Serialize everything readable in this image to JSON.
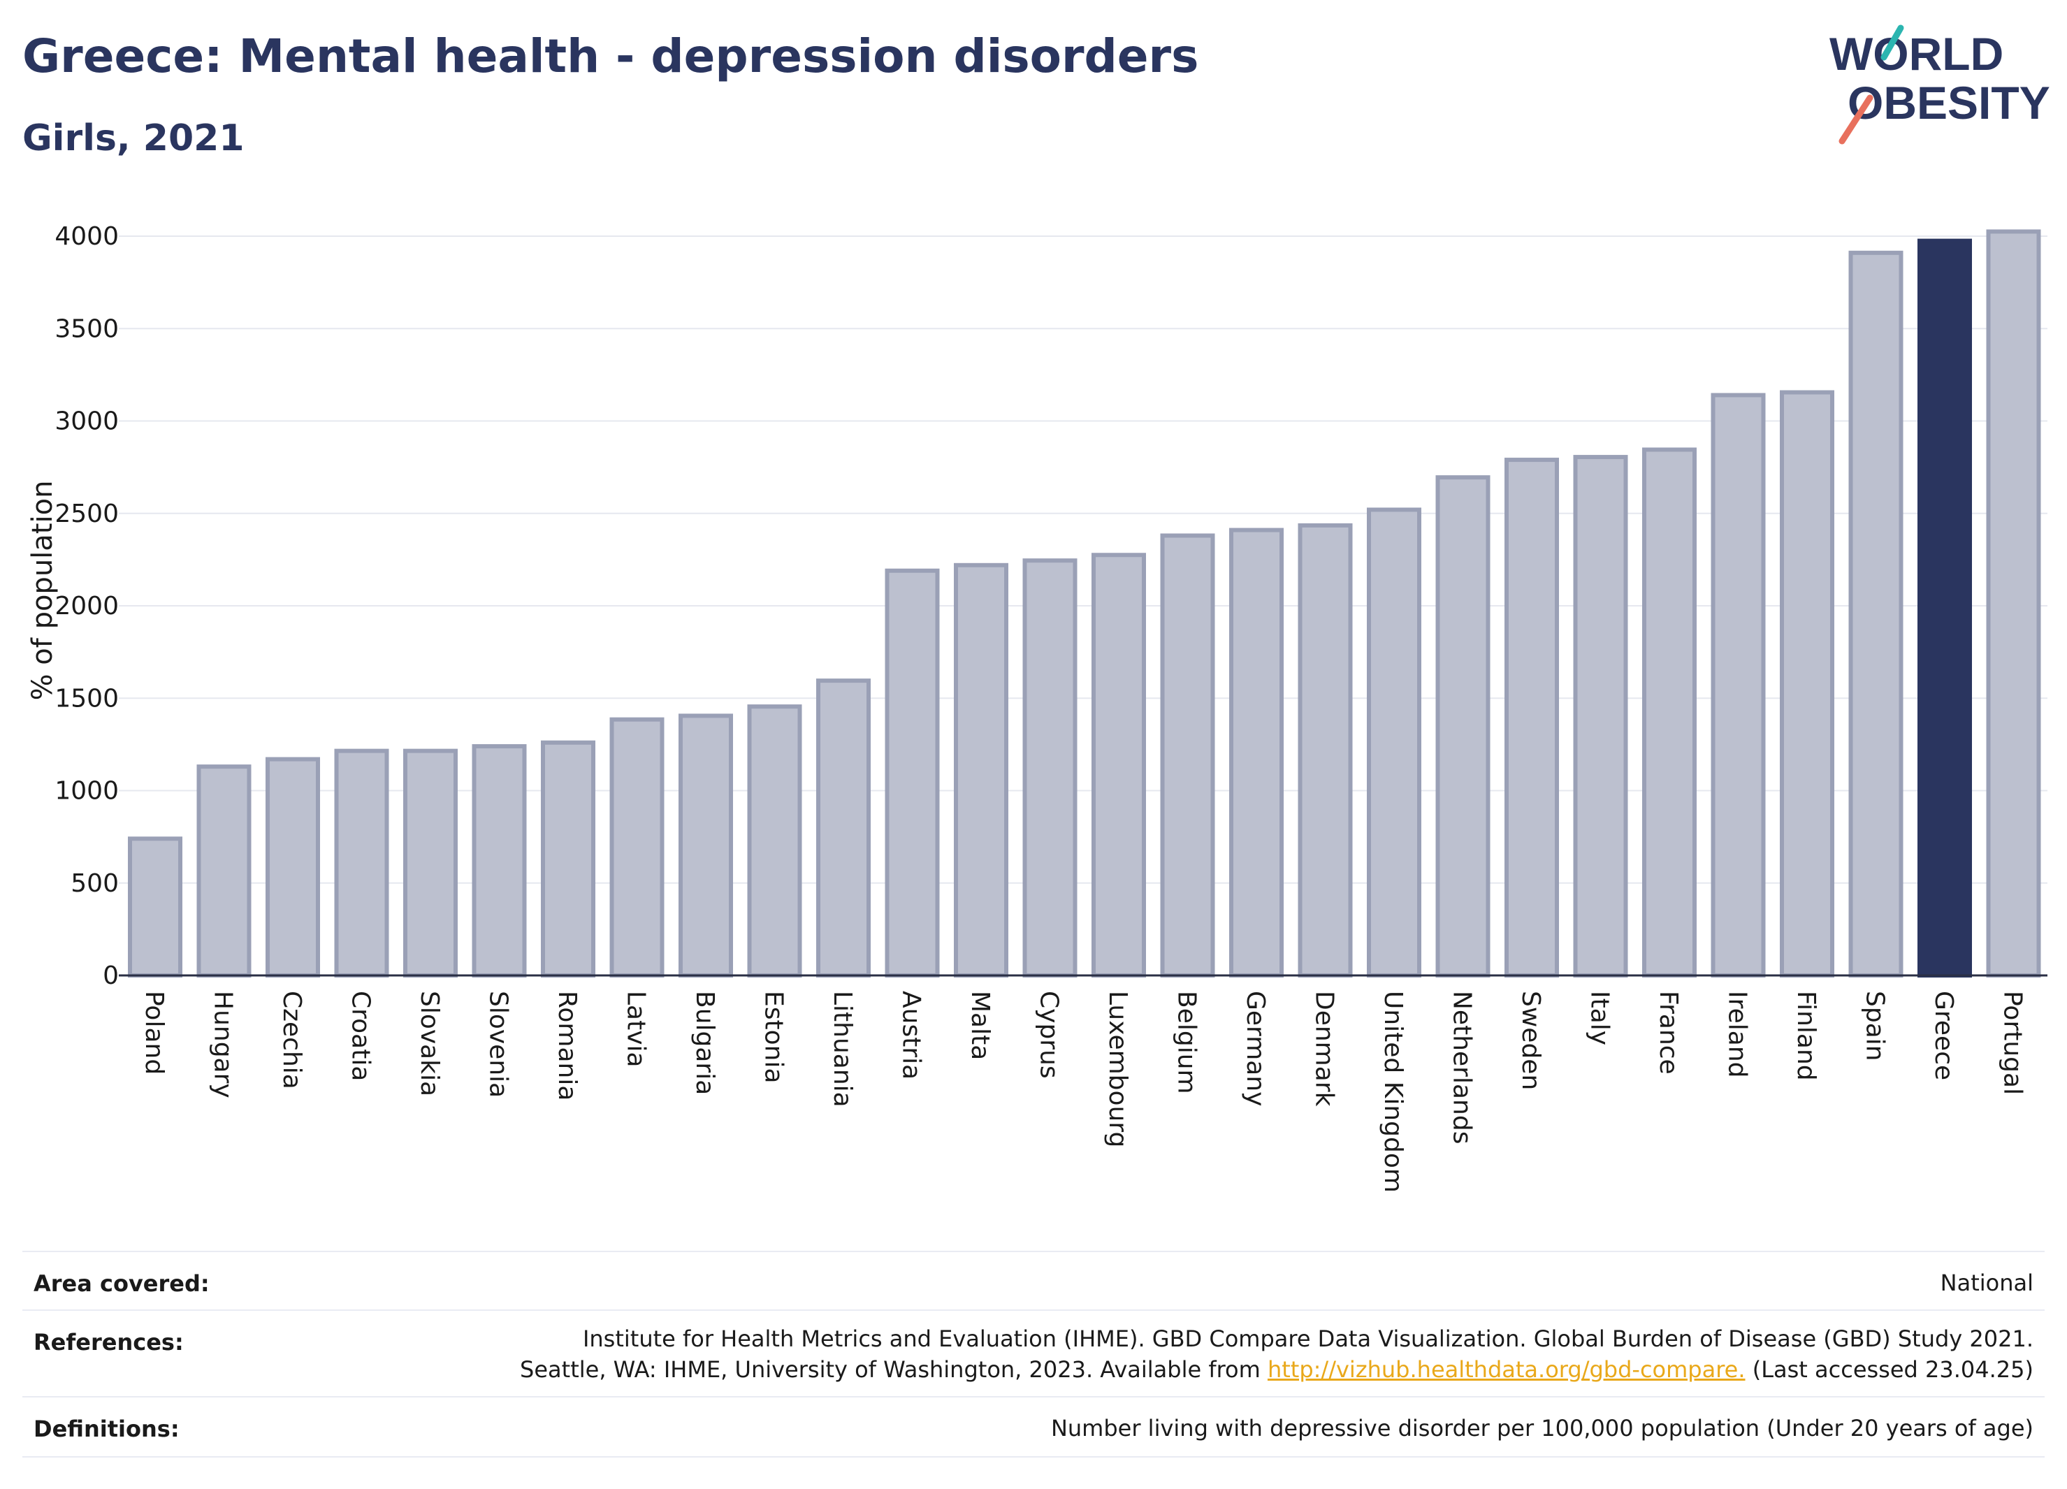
{
  "title": "Greece: Mental health - depression disorders",
  "subtitle": "Girls, 2021",
  "logo": {
    "line1": "WORLD",
    "line2": "OBESITY",
    "accent_teal": "#2cb5b0",
    "accent_red": "#e8705d"
  },
  "colors": {
    "bar": "#bcc0cf",
    "bar_edge": "#9aa0b6",
    "highlight": "#2a355f",
    "grid": "#e6e8ef",
    "axis": "#2a2f45"
  },
  "chart_data": {
    "type": "bar",
    "ylabel": "% of population",
    "ylim": [
      0,
      4200
    ],
    "yticks": [
      0,
      500,
      1000,
      1500,
      2000,
      2500,
      3000,
      3500,
      4000
    ],
    "highlight": "Greece",
    "categories": [
      "Poland",
      "Hungary",
      "Czechia",
      "Croatia",
      "Slovakia",
      "Slovenia",
      "Romania",
      "Latvia",
      "Bulgaria",
      "Estonia",
      "Lithuania",
      "Austria",
      "Malta",
      "Cyprus",
      "Luxembourg",
      "Belgium",
      "Germany",
      "Denmark",
      "United Kingdom",
      "Netherlands",
      "Sweden",
      "Italy",
      "France",
      "Ireland",
      "Finland",
      "Spain",
      "Greece",
      "Portugal"
    ],
    "values": [
      740,
      1130,
      1170,
      1215,
      1215,
      1240,
      1260,
      1385,
      1405,
      1455,
      1595,
      2190,
      2220,
      2245,
      2275,
      2380,
      2410,
      2435,
      2520,
      2695,
      2790,
      2805,
      2845,
      3140,
      3155,
      3910,
      3975,
      4025
    ],
    "grid": true,
    "legend": "none"
  },
  "info": {
    "area_label": "Area covered:",
    "area_value": "National",
    "references_label": "References:",
    "references_line1": "Institute for Health Metrics and Evaluation (IHME). GBD Compare Data Visualization. Global Burden of Disease (GBD) Study 2021.",
    "references_line2_pre": "Seattle, WA: IHME, University of Washington, 2023. Available from ",
    "references_link": "http://vizhub.healthdata.org/gbd-compare.",
    "references_line2_post": " (Last accessed 23.04.25)",
    "definitions_label": "Definitions:",
    "definitions_value": "Number living with depressive disorder per 100,000 population (Under 20 years of age)"
  }
}
